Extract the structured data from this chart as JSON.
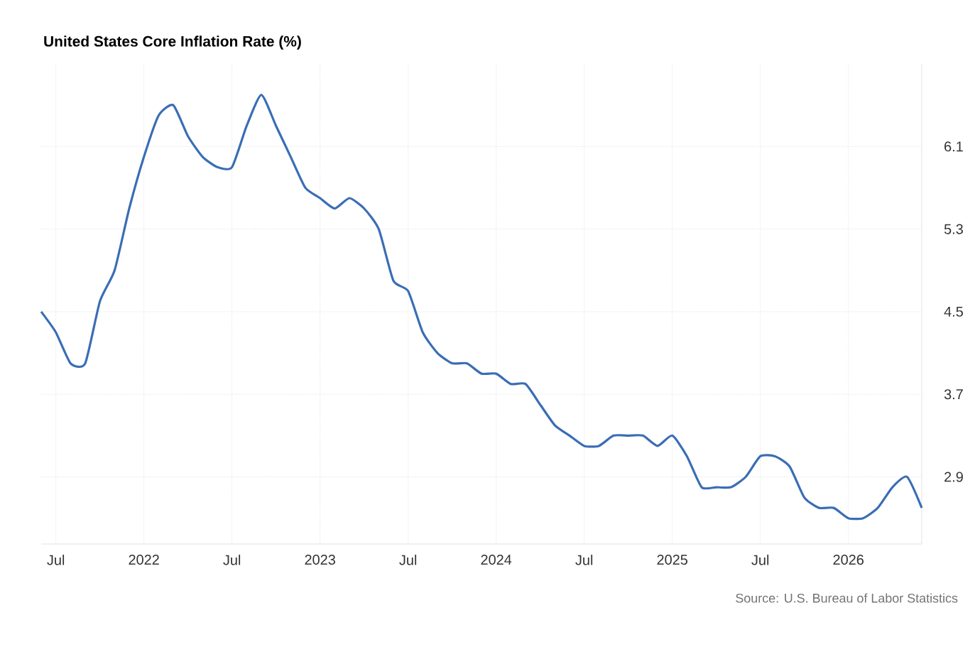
{
  "chart_data": {
    "type": "line",
    "title": "United States Core Inflation Rate (%)",
    "annotations": [
      "Source: U.S. Bureau of Labor Statistics"
    ],
    "x": [
      "2021-06",
      "2021-07",
      "2021-08",
      "2021-09",
      "2021-10",
      "2021-11",
      "2021-12",
      "2022-01",
      "2022-02",
      "2022-03",
      "2022-04",
      "2022-05",
      "2022-06",
      "2022-07",
      "2022-08",
      "2022-09",
      "2022-10",
      "2022-11",
      "2022-12",
      "2023-01",
      "2023-02",
      "2023-03",
      "2023-04",
      "2023-05",
      "2023-06",
      "2023-07",
      "2023-08",
      "2023-09",
      "2023-10",
      "2023-11",
      "2023-12",
      "2024-01",
      "2024-02",
      "2024-03",
      "2024-04",
      "2024-05",
      "2024-06",
      "2024-07",
      "2024-08",
      "2024-09",
      "2024-10",
      "2024-11",
      "2024-12",
      "2025-01",
      "2025-02",
      "2025-03",
      "2025-04",
      "2025-05",
      "2025-06",
      "2025-07",
      "2025-08",
      "2025-09",
      "2025-10",
      "2025-11",
      "2025-12",
      "2026-01",
      "2026-02",
      "2026-03",
      "2026-04",
      "2026-05",
      "2026-06"
    ],
    "series": [
      {
        "color": "#3a6db5",
        "values": [
          4.5,
          4.3,
          4.0,
          4.0,
          4.6,
          4.9,
          5.5,
          6.0,
          6.4,
          6.5,
          6.2,
          6.0,
          5.9,
          5.9,
          6.3,
          6.6,
          6.3,
          6.0,
          5.7,
          5.6,
          5.5,
          5.6,
          5.5,
          5.3,
          4.8,
          4.7,
          4.3,
          4.1,
          4.0,
          4.0,
          3.9,
          3.9,
          3.8,
          3.8,
          3.6,
          3.4,
          3.3,
          3.2,
          3.2,
          3.3,
          3.3,
          3.3,
          3.2,
          3.3,
          3.1,
          2.8,
          2.8,
          2.8,
          2.9,
          3.1,
          3.1,
          3.0,
          2.7,
          2.6,
          2.6,
          2.5,
          2.5,
          2.6,
          2.8,
          2.9,
          2.6
        ]
      }
    ],
    "xlim": [
      "2021-06",
      "2026-06"
    ],
    "xticks": [
      {
        "value": "2021-07",
        "label": "Jul"
      },
      {
        "value": "2022-01",
        "label": "2022"
      },
      {
        "value": "2022-07",
        "label": "Jul"
      },
      {
        "value": "2023-01",
        "label": "2023"
      },
      {
        "value": "2023-07",
        "label": "Jul"
      },
      {
        "value": "2024-01",
        "label": "2024"
      },
      {
        "value": "2024-07",
        "label": "Jul"
      },
      {
        "value": "2025-01",
        "label": "2025"
      },
      {
        "value": "2025-07",
        "label": "Jul"
      },
      {
        "value": "2026-01",
        "label": "2026"
      }
    ],
    "ylim": [
      2.25,
      6.9
    ],
    "yticks": [
      2.9,
      3.7,
      4.5,
      5.3,
      6.1
    ],
    "grid": true,
    "marker": "none",
    "line_style": "solid"
  }
}
